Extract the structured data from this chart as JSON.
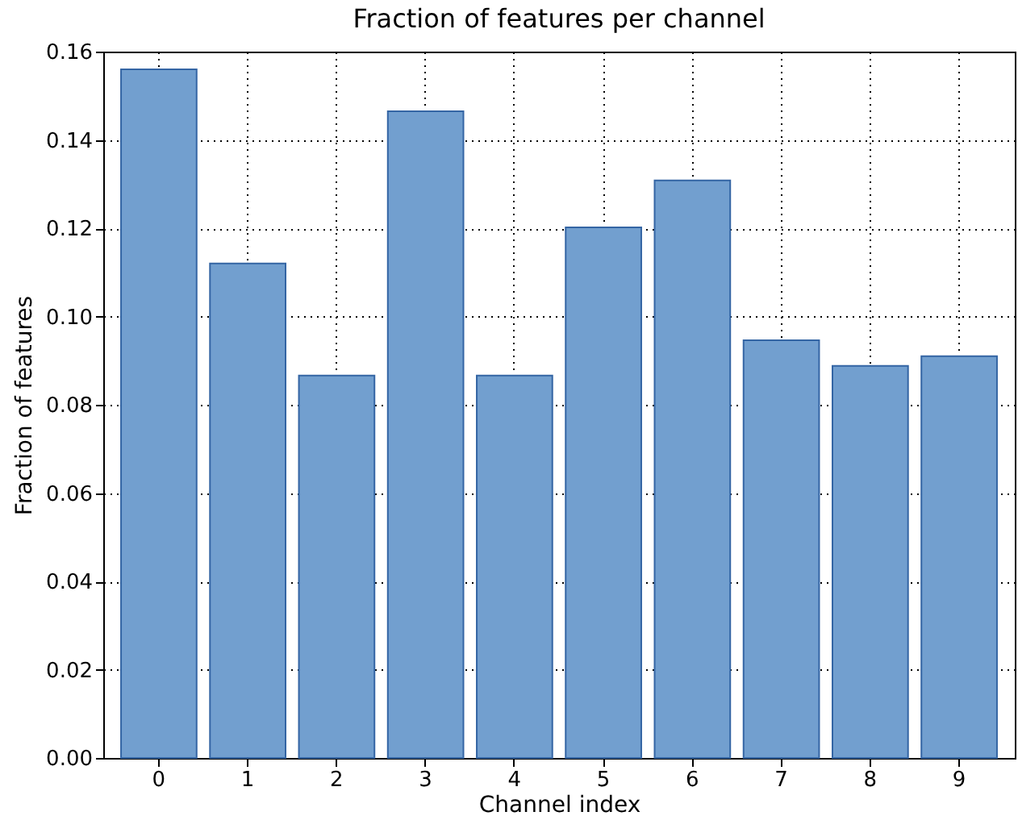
{
  "chart_data": {
    "type": "bar",
    "title": "Fraction of features per channel",
    "xlabel": "Channel index",
    "ylabel": "Fraction of features",
    "categories": [
      "0",
      "1",
      "2",
      "3",
      "4",
      "5",
      "6",
      "7",
      "8",
      "9"
    ],
    "values": [
      0.156,
      0.112,
      0.0866,
      0.1465,
      0.0866,
      0.1202,
      0.1308,
      0.0946,
      0.0888,
      0.091
    ],
    "color": "#729fcf",
    "ylim": [
      0,
      0.16
    ],
    "yticks": [
      {
        "value": 0,
        "label": "0.00"
      },
      {
        "value": 0.02,
        "label": "0.02"
      },
      {
        "value": 0.04,
        "label": "0.04"
      },
      {
        "value": 0.06,
        "label": "0.06"
      },
      {
        "value": 0.08,
        "label": "0.08"
      },
      {
        "value": 0.1,
        "label": "0.10"
      },
      {
        "value": 0.12,
        "label": "0.12"
      },
      {
        "value": 0.14,
        "label": "0.14"
      },
      {
        "value": 0.16,
        "label": "0.16"
      }
    ],
    "grid": true
  }
}
